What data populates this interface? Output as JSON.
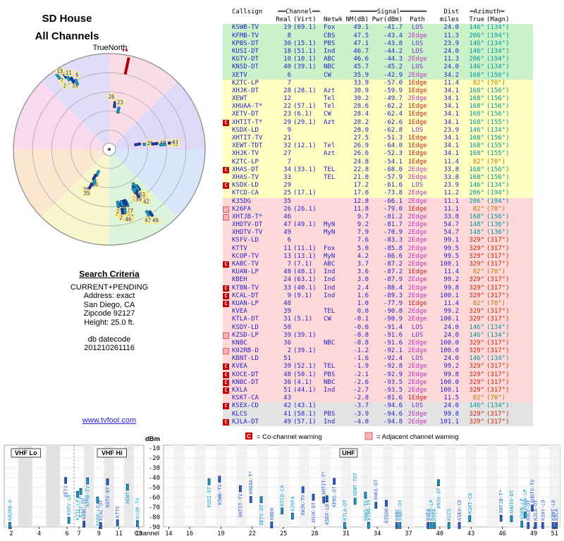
{
  "header": {
    "title_line1": "SD House",
    "title_line2": "All Channels",
    "true_north": "TrueNorth",
    "north_label": "N"
  },
  "search": {
    "heading": "Search Criteria",
    "lines": [
      "CURRENT+PENDING",
      "Address: exact",
      "San Diego, CA",
      "Zipcode 92127",
      "Height: 25.0 ft."
    ],
    "db_label": "db datecode",
    "db_value": "201210261116",
    "link": "www.tvfool.com"
  },
  "legend": {
    "co_symbol": "C",
    "co_label": "= Co-channel warning",
    "adj_label": "= Adjacent channel warning"
  },
  "table": {
    "header1": {
      "callsign": "Callsign",
      "channel": "══Channel══",
      "signal": "═══════Signal═══════",
      "dist": "Dist",
      "azimuth": "═Azimuth═"
    },
    "header2": {
      "real": "Real",
      "virt": "(Virt)",
      "netwk": "Netwk",
      "nm": "NM(dB)",
      "pwr": "Pwr(dBm)",
      "path": "Path",
      "dist": "miles",
      "true": "True",
      "magn": "(Magn)"
    },
    "row_columns": [
      "callsign",
      "real",
      "virt",
      "netwk",
      "nm_db",
      "pwr_dbm",
      "path",
      "dist_miles",
      "azimuth_true",
      "azimuth_magn",
      "strength_color",
      "warning"
    ],
    "rows": [
      [
        "KSWB-TV",
        "19",
        "(69.1)",
        "Fox",
        "49.1",
        "-41.7",
        "LOS",
        "24.0",
        "146°",
        "(134°)",
        "green",
        ""
      ],
      [
        "KFMB-TV",
        "8",
        "",
        "CBS",
        "47.5",
        "-43.4",
        "2Edge",
        "11.3",
        "206°",
        "(194°)",
        "green",
        ""
      ],
      [
        "KPBS-DT",
        "30",
        "(15.1)",
        "PBS",
        "47.1",
        "-43.8",
        "LOS",
        "23.9",
        "146°",
        "(134°)",
        "green",
        ""
      ],
      [
        "KUSI-DT",
        "18",
        "(51.1)",
        "Ind",
        "46.7",
        "-44.2",
        "LOS",
        "24.0",
        "146°",
        "(134°)",
        "green",
        ""
      ],
      [
        "KGTV-DT",
        "10",
        "(10.1)",
        "ABC",
        "46.6",
        "-44.3",
        "2Edge",
        "11.3",
        "206°",
        "(194°)",
        "green",
        ""
      ],
      [
        "KNSD-DT",
        "40",
        "(39.1)",
        "NBC",
        "45.7",
        "-45.2",
        "LOS",
        "24.0",
        "146°",
        "(134°)",
        "green",
        ""
      ],
      [
        "XETV",
        "6",
        "",
        "CW",
        "35.9",
        "-42.9",
        "2Edge",
        "34.2",
        "168°",
        "(156°)",
        "green",
        ""
      ],
      [
        "KZTC-LP",
        "7",
        "",
        "",
        "33.9",
        "-57.0",
        "1Edge",
        "11.4",
        "82°",
        "(70°)",
        "yellow",
        ""
      ],
      [
        "XHJK-DT",
        "28",
        "(28.1)",
        "Azt",
        "30.9",
        "-59.9",
        "1Edge",
        "34.1",
        "168°",
        "(156°)",
        "yellow",
        ""
      ],
      [
        "XEWT",
        "12",
        "",
        "Tel",
        "30.2",
        "-49.7",
        "2Edge",
        "34.1",
        "168°",
        "(156°)",
        "yellow",
        ""
      ],
      [
        "XHUAA-T*",
        "22",
        "(57.1)",
        "Tel",
        "28.6",
        "-62.2",
        "1Edge",
        "34.1",
        "168°",
        "(156°)",
        "yellow",
        ""
      ],
      [
        "XETV-DT",
        "23",
        "(6.1)",
        "CW",
        "28.4",
        "-62.4",
        "1Edge",
        "34.1",
        "168°",
        "(156°)",
        "yellow",
        ""
      ],
      [
        "XHTIT-T*",
        "29",
        "(29.1)",
        "Azt",
        "28.2",
        "-62.6",
        "1Edge",
        "34.1",
        "168°",
        "(155°)",
        "yellow",
        "co"
      ],
      [
        "KSDX-LD",
        "9",
        "",
        "",
        "28.0",
        "-62.8",
        "LOS",
        "23.9",
        "146°",
        "(134°)",
        "yellow",
        ""
      ],
      [
        "XHTIT-TV",
        "21",
        "",
        "",
        "27.5",
        "-51.3",
        "1Edge",
        "34.1",
        "168°",
        "(156°)",
        "yellow",
        ""
      ],
      [
        "XEWT-TDT",
        "32",
        "(12.1)",
        "Tel",
        "26.9",
        "-64.0",
        "1Edge",
        "34.1",
        "168°",
        "(155°)",
        "yellow",
        ""
      ],
      [
        "XHJK-TV",
        "27",
        "",
        "Azt",
        "26.6",
        "-52.3",
        "1Edge",
        "34.1",
        "168°",
        "(155°)",
        "yellow",
        ""
      ],
      [
        "KZTC-LP",
        "7",
        "",
        "",
        "24.8",
        "-54.1",
        "1Edge",
        "11.4",
        "82°",
        "(70°)",
        "yellow",
        ""
      ],
      [
        "XHAS-DT",
        "34",
        "(33.1)",
        "TEL",
        "22.8",
        "-68.0",
        "2Edge",
        "33.8",
        "168°",
        "(156°)",
        "yellow",
        "co"
      ],
      [
        "XHAS-TV",
        "33",
        "",
        "TEL",
        "21.0",
        "-57.9",
        "2Edge",
        "33.8",
        "168°",
        "(156°)",
        "yellow",
        ""
      ],
      [
        "KSDX-LD",
        "29",
        "",
        "",
        "17.2",
        "-61.6",
        "LOS",
        "23.9",
        "146°",
        "(134°)",
        "yellow",
        "co"
      ],
      [
        "KTCD-CA",
        "25",
        "(17.1)",
        "",
        "17.0",
        "-73.8",
        "2Edge",
        "11.2",
        "206°",
        "(194°)",
        "yellow",
        ""
      ],
      [
        "K35DG",
        "35",
        "",
        "",
        "12.8",
        "-66.1",
        "2Edge",
        "11.1",
        "206°",
        "(194°)",
        "pink",
        ""
      ],
      [
        "K26FA",
        "26",
        "(26.1)",
        "",
        "11.8",
        "-79.0",
        "1Edge",
        "11.1",
        "82°",
        "(70°)",
        "pink",
        "adj"
      ],
      [
        "XHTJB-T*",
        "46",
        "",
        "",
        "9.7",
        "-81.2",
        "2Edge",
        "33.8",
        "168°",
        "(156°)",
        "pink",
        "adj"
      ],
      [
        "XHDTV-DT",
        "47",
        "(49.1)",
        "MyN",
        "9.2",
        "-81.7",
        "2Edge",
        "54.7",
        "148°",
        "(136°)",
        "pink",
        ""
      ],
      [
        "XHDTV-TV",
        "49",
        "",
        "MyN",
        "7.9",
        "-70.9",
        "2Edge",
        "54.7",
        "148°",
        "(136°)",
        "pink",
        ""
      ],
      [
        "KSFV-LD",
        "6",
        "",
        "",
        "7.6",
        "-83.3",
        "2Edge",
        "99.1",
        "329°",
        "(317°)",
        "pink",
        ""
      ],
      [
        "KTTV",
        "11",
        "(11.1)",
        "Fox",
        "5.0",
        "-85.8",
        "2Edge",
        "99.5",
        "329°",
        "(317°)",
        "pink",
        ""
      ],
      [
        "KCOP-TV",
        "13",
        "(13.1)",
        "MyN",
        "4.2",
        "-86.6",
        "2Edge",
        "99.5",
        "329°",
        "(317°)",
        "pink",
        ""
      ],
      [
        "KABC-TV",
        "7",
        "(7.1)",
        "ABC",
        "3.7",
        "-87.2",
        "2Edge",
        "100.1",
        "329°",
        "(317°)",
        "pink",
        "co"
      ],
      [
        "KUAN-LP",
        "48",
        "(48.1)",
        "Ind",
        "3.6",
        "-87.2",
        "1Edge",
        "11.4",
        "82°",
        "(70°)",
        "pink",
        ""
      ],
      [
        "KBEH",
        "24",
        "(63.1)",
        "Ind",
        "3.0",
        "-87.9",
        "2Edge",
        "99.2",
        "329°",
        "(317°)",
        "pink",
        ""
      ],
      [
        "KTBN-TV",
        "33",
        "(40.1)",
        "Ind",
        "2.4",
        "-88.4",
        "2Edge",
        "99.8",
        "329°",
        "(317°)",
        "pink",
        "co"
      ],
      [
        "KCAL-DT",
        "9",
        "(9.1)",
        "Ind",
        "1.6",
        "-89.3",
        "2Edge",
        "100.1",
        "329°",
        "(317°)",
        "pink",
        "co"
      ],
      [
        "KUAN-LP",
        "48",
        "",
        "",
        "1.0",
        "-77.9",
        "1Edge",
        "11.4",
        "82°",
        "(70°)",
        "pink",
        "co"
      ],
      [
        "KVEA",
        "39",
        "",
        "TEL",
        "0.0",
        "-90.8",
        "2Edge",
        "99.2",
        "329°",
        "(317°)",
        "pink",
        ""
      ],
      [
        "KTLA-DT",
        "31",
        "(5.1)",
        "CW",
        "-0.1",
        "-90.9",
        "2Edge",
        "100.1",
        "329°",
        "(317°)",
        "pink",
        ""
      ],
      [
        "KSDY-LD",
        "50",
        "",
        "",
        "-0.6",
        "-91.4",
        "LOS",
        "24.0",
        "146°",
        "(134°)",
        "pink",
        ""
      ],
      [
        "KZSD-LP",
        "39",
        "(39.1)",
        "",
        "-0.8",
        "-91.6",
        "LOS",
        "24.0",
        "146°",
        "(134°)",
        "pink",
        "adj"
      ],
      [
        "KNBC",
        "36",
        "",
        "NBC",
        "-0.8",
        "-91.6",
        "2Edge",
        "100.0",
        "329°",
        "(317°)",
        "pink",
        ""
      ],
      [
        "K02RB-D",
        "2",
        "(39.1)",
        "",
        "-1.2",
        "-92.1",
        "2Edge",
        "100.0",
        "329°",
        "(317°)",
        "pink",
        "adj"
      ],
      [
        "KBNT-LD",
        "51",
        "",
        "",
        "-1.6",
        "-92.4",
        "LOS",
        "24.0",
        "146°",
        "(134°)",
        "pink",
        ""
      ],
      [
        "KVEA",
        "39",
        "(52.1)",
        "TEL",
        "-1.9",
        "-92.8",
        "2Edge",
        "99.2",
        "329°",
        "(317°)",
        "pink",
        "co"
      ],
      [
        "KOCE-DT",
        "48",
        "(50.1)",
        "PBS",
        "-2.1",
        "-92.9",
        "2Edge",
        "99.8",
        "329°",
        "(317°)",
        "pink",
        "co"
      ],
      [
        "KNBC-DT",
        "36",
        "(4.1)",
        "NBC",
        "-2.6",
        "-93.5",
        "2Edge",
        "100.0",
        "329°",
        "(317°)",
        "pink",
        "co"
      ],
      [
        "KXLA",
        "51",
        "(44.1)",
        "Ind",
        "-2.7",
        "-93.5",
        "2Edge",
        "100.1",
        "329°",
        "(317°)",
        "pink",
        "co"
      ],
      [
        "KSKT-CA",
        "43",
        "",
        "",
        "-2.8",
        "-81.6",
        "1Edge",
        "11.5",
        "82°",
        "(70°)",
        "pink",
        ""
      ],
      [
        "KSEX-CD",
        "42",
        "(43.1)",
        "",
        "-3.7",
        "-94.6",
        "LOS",
        "24.0",
        "146°",
        "(134°)",
        "gray",
        "co"
      ],
      [
        "KLCS",
        "41",
        "(58.1)",
        "PBS",
        "-3.9",
        "-94.6",
        "2Edge",
        "99.8",
        "329°",
        "(317°)",
        "gray",
        ""
      ],
      [
        "KJLA-DT",
        "49",
        "(57.1)",
        "Ind",
        "-4.0",
        "-94.8",
        "2Edge",
        "101.1",
        "329°",
        "(317°)",
        "gray",
        "co"
      ]
    ]
  },
  "chart_data": [
    {
      "type": "scatter",
      "name": "azimuth-distance radar (channels by bearing)",
      "rings": 5,
      "north_azimuth": 12,
      "wedge_colors": [
        "#fadce9",
        "#dfd9f7",
        "#d7e6f8",
        "#dcf4dc",
        "#f8f6cc",
        "#fbe7d0",
        "#f8d9ee",
        "#e1ddf8"
      ],
      "markers": [
        {
          "ch": "7",
          "az": 328,
          "r": 0.97
        },
        {
          "ch": "2",
          "az": 325,
          "r": 0.93
        },
        {
          "ch": "33",
          "az": 329,
          "r": 0.9
        },
        {
          "ch": "13",
          "az": 330,
          "r": 0.86
        },
        {
          "ch": "11",
          "az": 332,
          "r": 0.82
        },
        {
          "ch": "6",
          "az": 334,
          "r": 0.78
        },
        {
          "ch": "26",
          "az": 7,
          "r": 0.47
        },
        {
          "ch": "23",
          "az": 13,
          "r": 0.42
        },
        {
          "ch": "7",
          "az": 80,
          "r": 0.3
        },
        {
          "ch": "26",
          "az": 82,
          "r": 0.39
        },
        {
          "ch": "48",
          "az": 83,
          "r": 0.48
        },
        {
          "ch": "48",
          "az": 85,
          "r": 0.56
        },
        {
          "ch": "43",
          "az": 84,
          "r": 0.65
        },
        {
          "ch": "8",
          "az": 206,
          "r": 0.28
        },
        {
          "ch": "10",
          "az": 208,
          "r": 0.33
        },
        {
          "ch": "25",
          "az": 205,
          "r": 0.38
        },
        {
          "ch": "35",
          "az": 207,
          "r": 0.43
        },
        {
          "ch": "19",
          "az": 146,
          "r": 0.5
        },
        {
          "ch": "30",
          "az": 148,
          "r": 0.52
        },
        {
          "ch": "18",
          "az": 144,
          "r": 0.54
        },
        {
          "ch": "40",
          "az": 147,
          "r": 0.48
        },
        {
          "ch": "9",
          "az": 145,
          "r": 0.46
        },
        {
          "ch": "29",
          "az": 143,
          "r": 0.5
        },
        {
          "ch": "50",
          "az": 149,
          "r": 0.5
        },
        {
          "ch": "39",
          "az": 146,
          "r": 0.54
        },
        {
          "ch": "51",
          "az": 144,
          "r": 0.5
        },
        {
          "ch": "42",
          "az": 148,
          "r": 0.56
        },
        {
          "ch": "6",
          "az": 162,
          "r": 0.6
        },
        {
          "ch": "21",
          "az": 164,
          "r": 0.62
        },
        {
          "ch": "22",
          "az": 166,
          "r": 0.64
        },
        {
          "ch": "23",
          "az": 168,
          "r": 0.6
        },
        {
          "ch": "12",
          "az": 170,
          "r": 0.62
        },
        {
          "ch": "27",
          "az": 165,
          "r": 0.58
        },
        {
          "ch": "28",
          "az": 167,
          "r": 0.58
        },
        {
          "ch": "29",
          "az": 169,
          "r": 0.64
        },
        {
          "ch": "32",
          "az": 171,
          "r": 0.58
        },
        {
          "ch": "33",
          "az": 163,
          "r": 0.58
        },
        {
          "ch": "34",
          "az": 166,
          "r": 0.66
        },
        {
          "ch": "46",
          "az": 168,
          "r": 0.66
        },
        {
          "ch": "47",
          "az": 149,
          "r": 0.78
        },
        {
          "ch": "49",
          "az": 147,
          "r": 0.8
        }
      ]
    },
    {
      "type": "scatter",
      "name": "signal spectrum (Pwr dBm vs channel)",
      "xlabel": "Channel",
      "ylabel": "dBm",
      "ylim": [
        -90,
        -10
      ],
      "bands": [
        {
          "label": "VHF Lo",
          "channels": [
            2,
            6
          ]
        },
        {
          "label": "VHF Hi",
          "channels": [
            7,
            13
          ]
        },
        {
          "label": "UHF",
          "channels": [
            14,
            51
          ]
        }
      ],
      "left_ticks": [
        2,
        4,
        6,
        7,
        9,
        11,
        13
      ],
      "right_ticks": [
        14,
        16,
        19,
        22,
        25,
        28,
        31,
        34,
        37,
        40,
        43,
        46,
        49,
        51
      ],
      "dbm_ticks": [
        -10,
        -20,
        -30,
        -40,
        -50,
        -60,
        -70,
        -80,
        -90
      ],
      "stations_source": "table.rows (real channel vs Pwr dBm, labelled by callsign)"
    }
  ]
}
